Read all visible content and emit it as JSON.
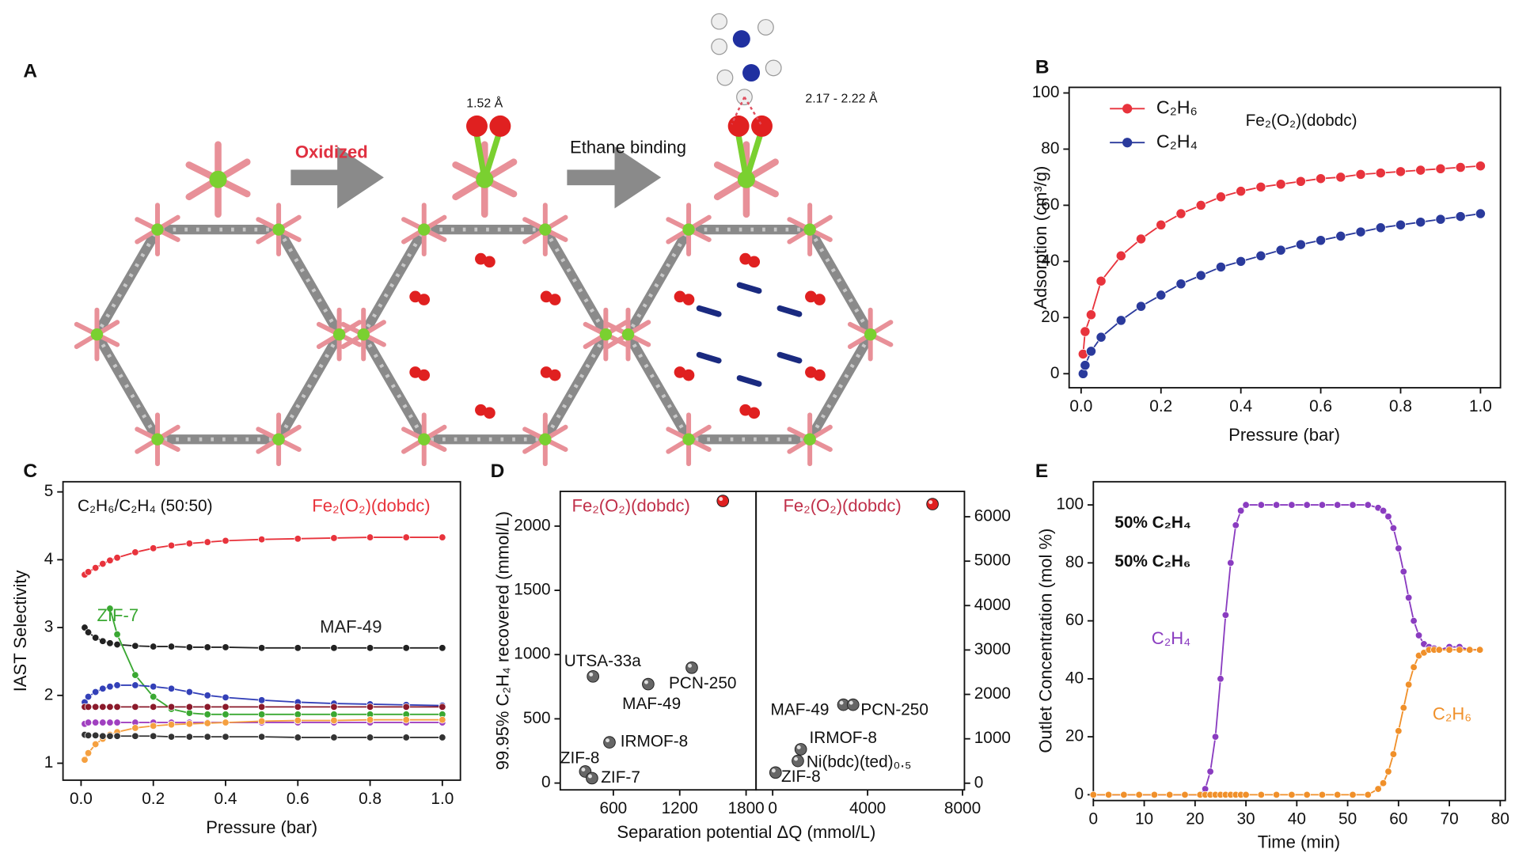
{
  "diagram": {
    "panel": "A",
    "steps": [
      "Oxidized",
      "Ethane binding"
    ],
    "distances": [
      "1.52 Å",
      "2.17 - 2.22 Å"
    ]
  },
  "chart_data": [
    {
      "type": "line",
      "panel": "B",
      "markers": true,
      "legend": "upper left",
      "annotations": [
        "Fe₂(O₂)(dobdc)"
      ],
      "xlabel": "Pressure (bar)",
      "ylabel": "Adsorption (cm³/g)",
      "x": [
        0.005,
        0.01,
        0.025,
        0.05,
        0.1,
        0.15,
        0.2,
        0.25,
        0.3,
        0.35,
        0.4,
        0.45,
        0.5,
        0.55,
        0.6,
        0.65,
        0.7,
        0.75,
        0.8,
        0.85,
        0.9,
        0.95,
        1.0
      ],
      "series": [
        {
          "name": "C₂H₆",
          "color": "#e8333c",
          "values": [
            7,
            15,
            21,
            33,
            42,
            48,
            53,
            57,
            60,
            63,
            65,
            66.5,
            67.5,
            68.5,
            69.5,
            70,
            71,
            71.5,
            72,
            72.5,
            73,
            73.5,
            74
          ]
        },
        {
          "name": "C₂H₄",
          "color": "#2a3a9c",
          "values": [
            0,
            3,
            8,
            13,
            19,
            24,
            28,
            32,
            35,
            38,
            40,
            42,
            44,
            46,
            47.5,
            49,
            50.5,
            52,
            53,
            54,
            55,
            56,
            57
          ]
        }
      ],
      "xlim": [
        -0.03,
        1.05
      ],
      "ylim": [
        -5,
        102
      ],
      "xticks": [
        {
          "value": 0,
          "label": "0.0"
        },
        0.2,
        0.4,
        0.6,
        0.8,
        {
          "value": 1,
          "label": "1.0"
        }
      ],
      "yticks": [
        0,
        20,
        40,
        60,
        80,
        100
      ]
    },
    {
      "type": "line",
      "panel": "C",
      "markers": true,
      "legend": "inline",
      "annotations": [
        "C₂H₆/C₂H₄ (50:50)"
      ],
      "xlabel": "Pressure (bar)",
      "ylabel": "IAST Selectivity",
      "x": [
        0.01,
        0.02,
        0.04,
        0.06,
        0.08,
        0.1,
        0.15,
        0.2,
        0.25,
        0.3,
        0.35,
        0.4,
        0.5,
        0.6,
        0.7,
        0.8,
        0.9,
        1.0
      ],
      "series": [
        {
          "name": "Fe₂(O₂)(dobdc)",
          "color": "#e8333c",
          "values": [
            3.78,
            3.82,
            3.88,
            3.94,
            3.99,
            4.03,
            4.11,
            4.17,
            4.21,
            4.24,
            4.26,
            4.28,
            4.3,
            4.31,
            4.32,
            4.33,
            4.33,
            4.33
          ]
        },
        {
          "name": "MAF-49",
          "color": "#222222",
          "values": [
            3.0,
            2.93,
            2.85,
            2.8,
            2.77,
            2.75,
            2.73,
            2.72,
            2.72,
            2.71,
            2.71,
            2.71,
            2.7,
            2.7,
            2.7,
            2.7,
            2.7,
            2.7
          ]
        },
        {
          "name": "ZIF-7",
          "color": "#3aa832",
          "values": [
            null,
            null,
            null,
            null,
            3.28,
            2.9,
            2.3,
            1.98,
            1.8,
            1.74,
            1.72,
            1.72,
            1.72,
            1.72,
            1.72,
            1.72,
            1.72,
            1.72
          ]
        },
        {
          "color": "#3340b8",
          "values": [
            1.9,
            1.98,
            2.05,
            2.1,
            2.13,
            2.15,
            2.15,
            2.13,
            2.1,
            2.05,
            2.0,
            1.97,
            1.93,
            1.9,
            1.88,
            1.87,
            1.86,
            1.85
          ]
        },
        {
          "color": "#8b1a2b",
          "values": [
            1.83,
            1.83,
            1.83,
            1.83,
            1.83,
            1.83,
            1.83,
            1.83,
            1.83,
            1.83,
            1.83,
            1.83,
            1.83,
            1.83,
            1.83,
            1.83,
            1.83,
            1.83
          ]
        },
        {
          "color": "#a040c0",
          "values": [
            1.58,
            1.6,
            1.6,
            1.6,
            1.6,
            1.6,
            1.6,
            1.6,
            1.6,
            1.6,
            1.6,
            1.6,
            1.6,
            1.6,
            1.6,
            1.6,
            1.6,
            1.6
          ]
        },
        {
          "color": "#f5a040",
          "values": [
            1.05,
            1.15,
            1.28,
            1.36,
            1.42,
            1.46,
            1.52,
            1.55,
            1.57,
            1.58,
            1.59,
            1.6,
            1.62,
            1.63,
            1.63,
            1.64,
            1.64,
            1.64
          ]
        },
        {
          "color": "#333333",
          "values": [
            1.42,
            1.41,
            1.41,
            1.4,
            1.4,
            1.4,
            1.4,
            1.4,
            1.39,
            1.39,
            1.39,
            1.39,
            1.39,
            1.38,
            1.38,
            1.38,
            1.38,
            1.38
          ]
        }
      ],
      "xlim": [
        -0.05,
        1.05
      ],
      "ylim": [
        0.75,
        5.15
      ],
      "xticks": [
        {
          "value": 0,
          "label": "0.0"
        },
        0.2,
        0.4,
        0.6,
        0.8,
        {
          "value": 1,
          "label": "1.0"
        }
      ],
      "yticks": [
        1,
        2,
        3,
        4,
        5
      ]
    },
    {
      "type": "scatter",
      "panel": "D",
      "xlabel": "Separation potential ΔQ (mmol/L)",
      "ylabel": "99.95% C₂H₄ recovered (mmol/L)",
      "labels": [
        "Fe₂(O₂)(dobdc)",
        "UTSA-33a",
        "PCN-250",
        "MAF-49",
        "IRMOF-8",
        "ZIF-8",
        "ZIF-7"
      ],
      "x": [
        1590,
        416,
        1309,
        915,
        565,
        346,
        407
      ],
      "values": [
        2196,
        830,
        898,
        770,
        317,
        90,
        38
      ],
      "colors": [
        "#e02020",
        "#666666",
        "#666666",
        "#666666",
        "#666666",
        "#666666",
        "#666666"
      ],
      "xlim": [
        120,
        1890
      ],
      "ylim": [
        -53,
        2270
      ],
      "xticks": [
        600,
        1200,
        1800
      ],
      "yticks": [
        0,
        500,
        1000,
        1500,
        2000
      ]
    },
    {
      "type": "scatter",
      "y_axis_position": "right",
      "labels": [
        "Fe₂(O₂)(dobdc)",
        "MAF-49",
        "PCN-250",
        "IRMOF-8",
        "Ni(bdc)(ted)₀.₅",
        "ZIF-8"
      ],
      "x": [
        6735,
        2980,
        3388,
        1184,
        1061,
        122
      ],
      "values": [
        6284,
        1767,
        1767,
        764,
        502,
        240
      ],
      "colors": [
        "#e02020",
        "#666666",
        "#666666",
        "#666666",
        "#666666",
        "#666666"
      ],
      "xlim": [
        -700,
        8080
      ],
      "ylim": [
        -150,
        6570
      ],
      "xticks": [
        0,
        4000,
        8000
      ],
      "yticks": [
        0,
        1000,
        2000,
        3000,
        4000,
        5000,
        6000
      ]
    },
    {
      "type": "line",
      "panel": "E",
      "markers": true,
      "legend": "inline",
      "annotations": [
        "50% C₂H₄",
        "50% C₂H₆"
      ],
      "xlabel": "Time (min)",
      "ylabel": "Outlet Concentration (mol %)",
      "x": [
        0,
        3,
        6,
        9,
        12,
        15,
        18,
        21,
        22,
        23,
        24,
        25,
        26,
        27,
        28,
        29,
        30,
        33,
        36,
        39,
        42,
        45,
        48,
        51,
        54,
        56,
        57,
        58,
        59,
        60,
        61,
        62,
        63,
        64,
        65,
        66,
        67,
        68,
        70,
        72,
        74,
        76
      ],
      "series": [
        {
          "name": "C₂H₄",
          "color": "#8a3cc0",
          "values": [
            0,
            0,
            0,
            0,
            0,
            0,
            0,
            0,
            2,
            8,
            20,
            40,
            62,
            80,
            93,
            98,
            100,
            100,
            100,
            100,
            100,
            100,
            100,
            100,
            100,
            99,
            98,
            96,
            92,
            85,
            77,
            68,
            60,
            55,
            52,
            51,
            50.5,
            50,
            51,
            51,
            50,
            50
          ]
        },
        {
          "name": "C₂H₆",
          "color": "#f0902a",
          "values": [
            0,
            0,
            0,
            0,
            0,
            0,
            0,
            0,
            0,
            0,
            0,
            0,
            0,
            0,
            0,
            0,
            0,
            0,
            0,
            0,
            0,
            0,
            0,
            0,
            0,
            2,
            4,
            8,
            14,
            22,
            30,
            38,
            44,
            48,
            49,
            50,
            50,
            50,
            50,
            50,
            50,
            50
          ]
        }
      ],
      "xlim": [
        0,
        81
      ],
      "ylim": [
        -2,
        108
      ],
      "xticks": [
        0,
        10,
        20,
        30,
        40,
        50,
        60,
        70,
        80
      ],
      "yticks": [
        0,
        20,
        40,
        60,
        80,
        100
      ]
    }
  ]
}
